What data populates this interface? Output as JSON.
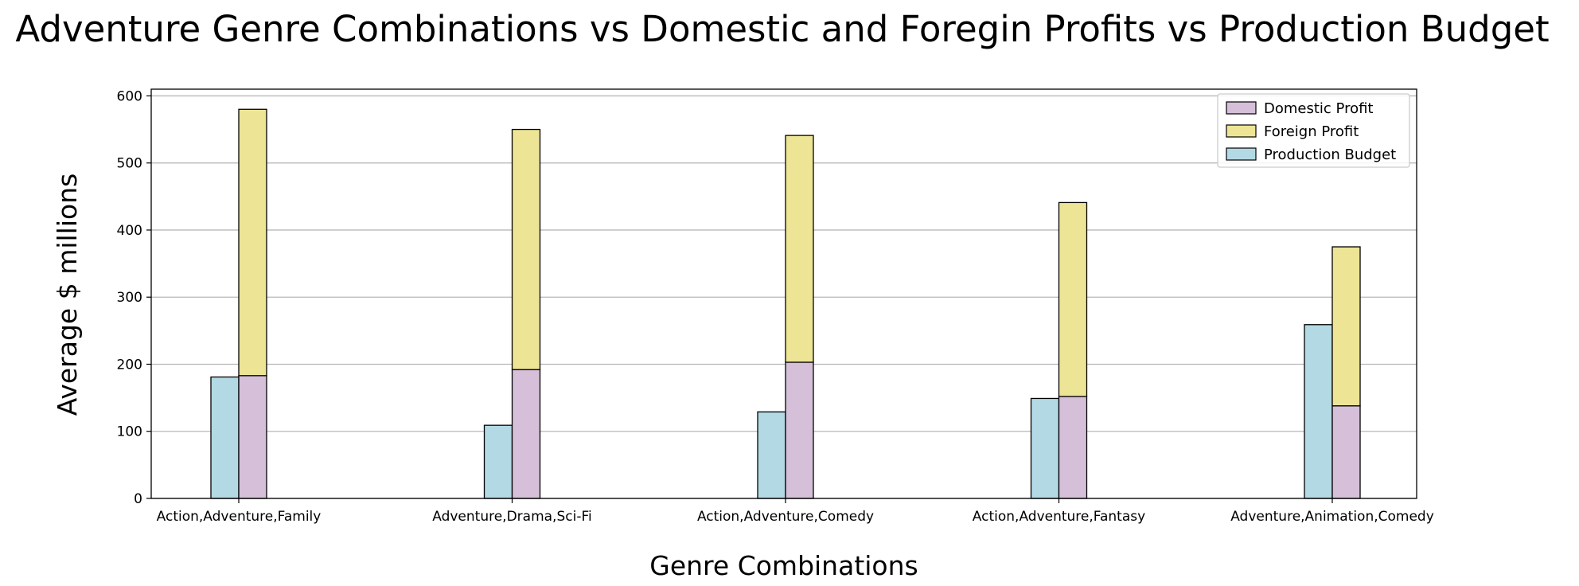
{
  "chart_data": {
    "type": "bar",
    "title": "Adventure Genre Combinations vs Domestic and Foregin Profits vs Production Budget",
    "xlabel": "Genre Combinations",
    "ylabel": "Average $ millions",
    "ylim": [
      0,
      610
    ],
    "yticks": [
      0,
      100,
      200,
      300,
      400,
      500,
      600
    ],
    "grid": "horizontal",
    "legend_position": "upper-right",
    "categories": [
      "Action,Adventure,Family",
      "Adventure,Drama,Sci-Fi",
      "Action,Adventure,Comedy",
      "Action,Adventure,Fantasy",
      "Adventure,Animation,Comedy"
    ],
    "series": [
      {
        "name": "Domestic Profit",
        "color": "#d5bfd9",
        "values": [
          183,
          192,
          203,
          152,
          138
        ],
        "stack": "profit"
      },
      {
        "name": "Foreign Profit",
        "color": "#ede495",
        "values": [
          397,
          358,
          338,
          289,
          237
        ],
        "stack": "profit",
        "stacked_on": "Domestic Profit"
      },
      {
        "name": "Production Budget",
        "color": "#b3d9e4",
        "values": [
          181,
          109,
          129,
          149,
          259
        ],
        "stack": "budget"
      }
    ]
  }
}
